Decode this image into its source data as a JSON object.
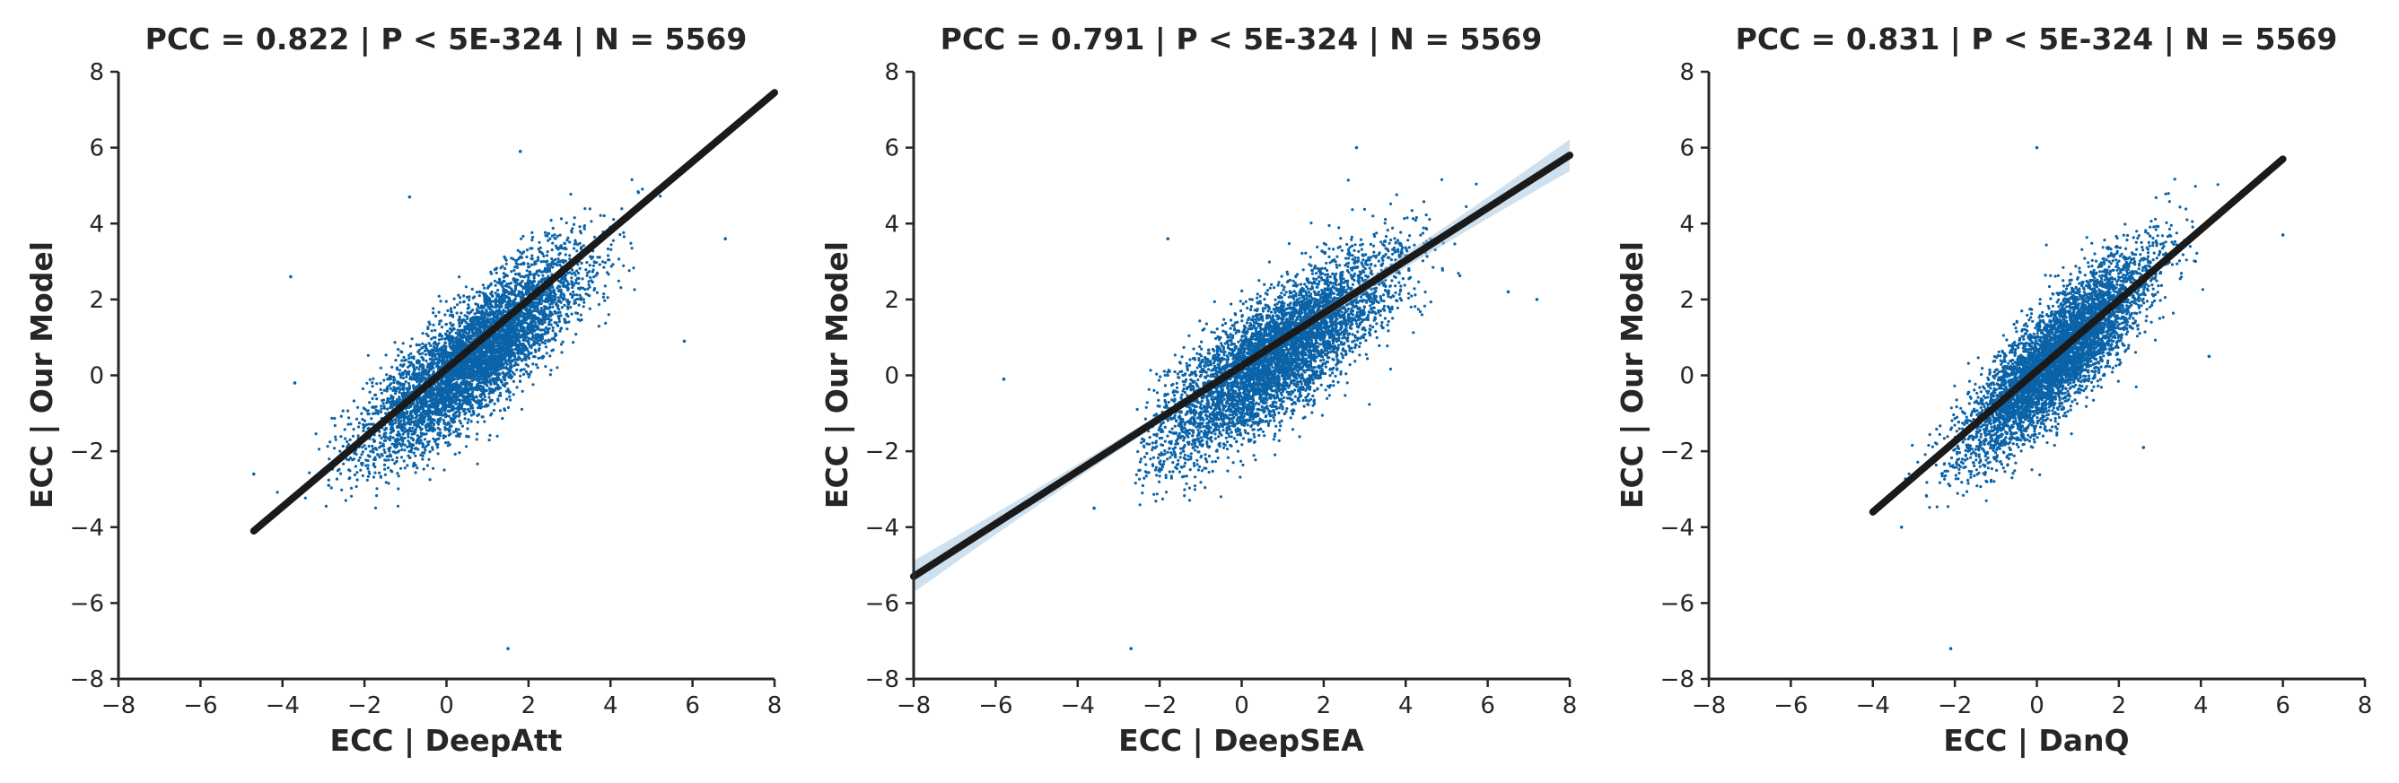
{
  "figure": {
    "background": "#ffffff",
    "point_color": "#0b63a8",
    "line_color": "#1a1a1a",
    "band_color": "#a7c9e2"
  },
  "chart_data": [
    {
      "type": "scatter",
      "title": "PCC =  0.822 | P <  5E-324 | N = 5569",
      "xlabel": "ECC | DeepAtt",
      "ylabel": "ECC | Our Model",
      "xlim": [
        -8,
        8
      ],
      "ylim": [
        -8,
        8
      ],
      "xticks": [
        -8,
        -6,
        -4,
        -2,
        0,
        2,
        4,
        6,
        8
      ],
      "yticks": [
        -8,
        -6,
        -4,
        -2,
        0,
        2,
        4,
        6,
        8
      ],
      "xtick_labels": [
        "−8",
        "−6",
        "−4",
        "−2",
        "0",
        "2",
        "4",
        "6",
        "8"
      ],
      "ytick_labels": [
        "−8",
        "−6",
        "−4",
        "−2",
        "0",
        "2",
        "4",
        "6",
        "8"
      ],
      "grid": false,
      "n_points": 5569,
      "pcc": 0.822,
      "point_cloud": {
        "x_mean": 0.7,
        "x_sd": 1.3,
        "y_mean": 0.5,
        "y_sd": 1.3,
        "x_range": [
          -4.8,
          6.8
        ],
        "y_range": [
          -3.5,
          6.0
        ]
      },
      "outliers": [
        {
          "x": -3.8,
          "y": 2.6
        },
        {
          "x": -3.7,
          "y": -0.2
        },
        {
          "x": 1.5,
          "y": -7.2
        },
        {
          "x": 5.8,
          "y": 0.9
        },
        {
          "x": 6.8,
          "y": 3.6
        },
        {
          "x": -0.9,
          "y": 4.7
        },
        {
          "x": 1.8,
          "y": 5.9
        },
        {
          "x": -4.7,
          "y": -2.6
        }
      ],
      "regression": {
        "x": [
          -4.7,
          8.0
        ],
        "y": [
          -4.1,
          7.45
        ]
      },
      "band_halfwidth_at_ends": 0.05
    },
    {
      "type": "scatter",
      "title": "PCC =  0.791 | P <  5E-324 | N = 5569",
      "xlabel": "ECC | DeepSEA",
      "ylabel": "ECC | Our Model",
      "xlim": [
        -8,
        8
      ],
      "ylim": [
        -8,
        8
      ],
      "xticks": [
        -8,
        -6,
        -4,
        -2,
        0,
        2,
        4,
        6,
        8
      ],
      "yticks": [
        -8,
        -6,
        -4,
        -2,
        0,
        2,
        4,
        6,
        8
      ],
      "xtick_labels": [
        "−8",
        "−6",
        "−4",
        "−2",
        "0",
        "2",
        "4",
        "6",
        "8"
      ],
      "ytick_labels": [
        "−8",
        "−6",
        "−4",
        "−2",
        "0",
        "2",
        "4",
        "6",
        "8"
      ],
      "grid": false,
      "n_points": 5569,
      "pcc": 0.791,
      "point_cloud": {
        "x_mean": 0.8,
        "x_sd": 1.4,
        "y_mean": 0.5,
        "y_sd": 1.3,
        "x_range": [
          -2.6,
          7.5
        ],
        "y_range": [
          -3.5,
          6.0
        ]
      },
      "outliers": [
        {
          "x": -5.8,
          "y": -0.1
        },
        {
          "x": -2.7,
          "y": -7.2
        },
        {
          "x": -3.6,
          "y": -3.5
        },
        {
          "x": 7.2,
          "y": 2.0
        },
        {
          "x": 6.5,
          "y": 2.2
        },
        {
          "x": 2.8,
          "y": 6.0
        },
        {
          "x": -1.8,
          "y": 3.6
        }
      ],
      "regression": {
        "x": [
          -8.0,
          8.0
        ],
        "y": [
          -5.3,
          5.8
        ]
      },
      "band_halfwidth_at_ends": 0.42
    },
    {
      "type": "scatter",
      "title": "PCC =  0.831 | P <  5E-324 | N = 5569",
      "xlabel": "ECC | DanQ",
      "ylabel": "ECC | Our Model",
      "xlim": [
        -8,
        8
      ],
      "ylim": [
        -8,
        8
      ],
      "xticks": [
        -8,
        -6,
        -4,
        -2,
        0,
        2,
        4,
        6,
        8
      ],
      "yticks": [
        -8,
        -6,
        -4,
        -2,
        0,
        2,
        4,
        6,
        8
      ],
      "xtick_labels": [
        "−8",
        "−6",
        "−4",
        "−2",
        "0",
        "2",
        "4",
        "6",
        "8"
      ],
      "ytick_labels": [
        "−8",
        "−6",
        "−4",
        "−2",
        "0",
        "2",
        "4",
        "6",
        "8"
      ],
      "grid": false,
      "n_points": 5569,
      "pcc": 0.831,
      "point_cloud": {
        "x_mean": 0.5,
        "x_sd": 1.1,
        "y_mean": 0.5,
        "y_sd": 1.3,
        "x_range": [
          -4.0,
          6.0
        ],
        "y_range": [
          -3.5,
          6.0
        ]
      },
      "outliers": [
        {
          "x": -2.1,
          "y": -7.2
        },
        {
          "x": 0.0,
          "y": 6.0
        },
        {
          "x": 6.0,
          "y": 3.7
        },
        {
          "x": -3.3,
          "y": -4.0
        },
        {
          "x": 4.2,
          "y": 0.5
        },
        {
          "x": 2.6,
          "y": -1.9
        }
      ],
      "regression": {
        "x": [
          -4.0,
          6.0
        ],
        "y": [
          -3.6,
          5.7
        ]
      },
      "band_halfwidth_at_ends": 0.05
    }
  ]
}
